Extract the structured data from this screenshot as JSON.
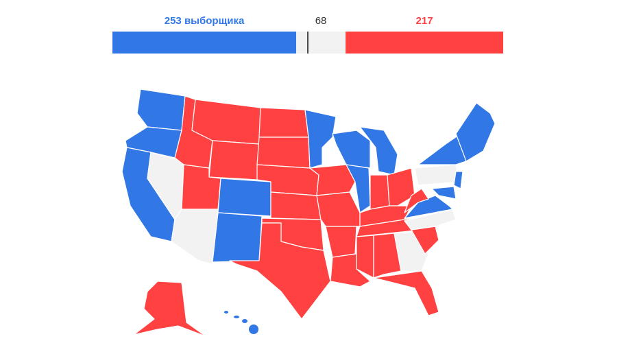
{
  "electoral_bar": {
    "values": [
      253,
      68,
      217
    ],
    "value_labels": [
      "253 выборщика",
      "68",
      "217"
    ],
    "colors": [
      "#3178e6",
      "#f2f2f2",
      "#ff4141"
    ]
  }
}
